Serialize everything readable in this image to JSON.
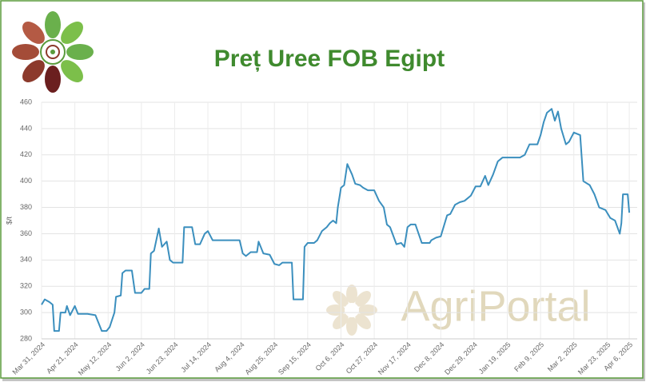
{
  "chart_data": {
    "type": "line",
    "title": "Preț Uree FOB Egipt",
    "y_label": "$/t",
    "watermark": "AgriPortal",
    "x": [
      "2024-03-31",
      "2024-04-02",
      "2024-04-05",
      "2024-04-07",
      "2024-04-08",
      "2024-04-11",
      "2024-04-12",
      "2024-04-15",
      "2024-04-16",
      "2024-04-18",
      "2024-04-21",
      "2024-04-23",
      "2024-04-29",
      "2024-05-04",
      "2024-05-06",
      "2024-05-08",
      "2024-05-11",
      "2024-05-13",
      "2024-05-16",
      "2024-05-17",
      "2024-05-20",
      "2024-05-21",
      "2024-05-23",
      "2024-05-27",
      "2024-05-29",
      "2024-06-02",
      "2024-06-04",
      "2024-06-07",
      "2024-06-08",
      "2024-06-10",
      "2024-06-13",
      "2024-06-15",
      "2024-06-18",
      "2024-06-20",
      "2024-06-22",
      "2024-06-28",
      "2024-06-29",
      "2024-07-04",
      "2024-07-06",
      "2024-07-09",
      "2024-07-12",
      "2024-07-14",
      "2024-07-17",
      "2024-08-03",
      "2024-08-05",
      "2024-08-07",
      "2024-08-10",
      "2024-08-14",
      "2024-08-15",
      "2024-08-18",
      "2024-08-22",
      "2024-08-25",
      "2024-08-28",
      "2024-08-30",
      "2024-09-05",
      "2024-09-06",
      "2024-09-12",
      "2024-09-13",
      "2024-09-15",
      "2024-09-19",
      "2024-09-21",
      "2024-09-24",
      "2024-09-27",
      "2024-09-29",
      "2024-10-01",
      "2024-10-03",
      "2024-10-04",
      "2024-10-06",
      "2024-10-08",
      "2024-10-10",
      "2024-10-13",
      "2024-10-15",
      "2024-10-18",
      "2024-10-20",
      "2024-10-23",
      "2024-10-27",
      "2024-10-30",
      "2024-11-02",
      "2024-11-04",
      "2024-11-06",
      "2024-11-10",
      "2024-11-13",
      "2024-11-15",
      "2024-11-17",
      "2024-11-19",
      "2024-11-22",
      "2024-11-24",
      "2024-11-26",
      "2024-12-01",
      "2024-12-02",
      "2024-12-05",
      "2024-12-08",
      "2024-12-10",
      "2024-12-12",
      "2024-12-14",
      "2024-12-17",
      "2024-12-20",
      "2024-12-23",
      "2024-12-27",
      "2024-12-30",
      "2025-01-02",
      "2025-01-05",
      "2025-01-07",
      "2025-01-10",
      "2025-01-13",
      "2025-01-16",
      "2025-01-22",
      "2025-01-27",
      "2025-01-30",
      "2025-02-02",
      "2025-02-07",
      "2025-02-09",
      "2025-02-11",
      "2025-02-13",
      "2025-02-16",
      "2025-02-18",
      "2025-02-20",
      "2025-02-22",
      "2025-02-25",
      "2025-02-27",
      "2025-03-02",
      "2025-03-06",
      "2025-03-08",
      "2025-03-12",
      "2025-03-15",
      "2025-03-18",
      "2025-03-22",
      "2025-03-25",
      "2025-03-28",
      "2025-03-31",
      "2025-04-01",
      "2025-04-02",
      "2025-04-05",
      "2025-04-06"
    ],
    "values": [
      306,
      310,
      308,
      306,
      286,
      286,
      300,
      300,
      305,
      298,
      305,
      299,
      299,
      298,
      292,
      286,
      286,
      289,
      300,
      312,
      313,
      330,
      332,
      332,
      315,
      315,
      318,
      318,
      345,
      347,
      364,
      350,
      354,
      340,
      338,
      338,
      365,
      365,
      352,
      352,
      360,
      362,
      355,
      355,
      345,
      343,
      346,
      346,
      354,
      345,
      344,
      337,
      336,
      338,
      338,
      310,
      310,
      350,
      353,
      353,
      355,
      362,
      365,
      368,
      370,
      368,
      380,
      395,
      397,
      413,
      405,
      398,
      397,
      395,
      393,
      393,
      385,
      380,
      367,
      365,
      352,
      353,
      350,
      365,
      367,
      367,
      360,
      353,
      353,
      355,
      357,
      358,
      366,
      374,
      375,
      382,
      384,
      385,
      389,
      396,
      396,
      404,
      397,
      405,
      415,
      418,
      418,
      418,
      420,
      428,
      428,
      435,
      445,
      452,
      455,
      446,
      453,
      440,
      428,
      430,
      437,
      435,
      400,
      397,
      390,
      380,
      378,
      372,
      370,
      360,
      368,
      390,
      390,
      376
    ],
    "color": "#3b8fbe",
    "xlim": [
      "2024-03-31",
      "2025-04-11"
    ],
    "xticks": [
      {
        "value": "2024-03-31",
        "label": "Mar 31, 2024"
      },
      {
        "value": "2024-04-21",
        "label": "Apr 21, 2024"
      },
      {
        "value": "2024-05-12",
        "label": "May 12, 2024"
      },
      {
        "value": "2024-06-02",
        "label": "Jun 2, 2024"
      },
      {
        "value": "2024-06-23",
        "label": "Jun 23, 2024"
      },
      {
        "value": "2024-07-14",
        "label": "Jul 14, 2024"
      },
      {
        "value": "2024-08-04",
        "label": "Aug 4, 2024"
      },
      {
        "value": "2024-08-25",
        "label": "Aug 25, 2024"
      },
      {
        "value": "2024-09-15",
        "label": "Sep 15, 2024"
      },
      {
        "value": "2024-10-06",
        "label": "Oct 6, 2024"
      },
      {
        "value": "2024-10-27",
        "label": "Oct 27, 2024"
      },
      {
        "value": "2024-11-17",
        "label": "Nov 17, 2024"
      },
      {
        "value": "2024-12-08",
        "label": "Dec 8, 2024"
      },
      {
        "value": "2024-12-29",
        "label": "Dec 29, 2024"
      },
      {
        "value": "2025-01-19",
        "label": "Jan 19, 2025"
      },
      {
        "value": "2025-02-09",
        "label": "Feb 9, 2025"
      },
      {
        "value": "2025-03-02",
        "label": "Mar 2, 2025"
      },
      {
        "value": "2025-03-23",
        "label": "Mar 23, 2025"
      },
      {
        "value": "2025-04-06",
        "label": "Apr 6, 2025"
      }
    ],
    "ylim": [
      280,
      460
    ],
    "yticks": [
      280,
      300,
      320,
      340,
      360,
      380,
      400,
      420,
      440,
      460
    ],
    "grid": true
  }
}
